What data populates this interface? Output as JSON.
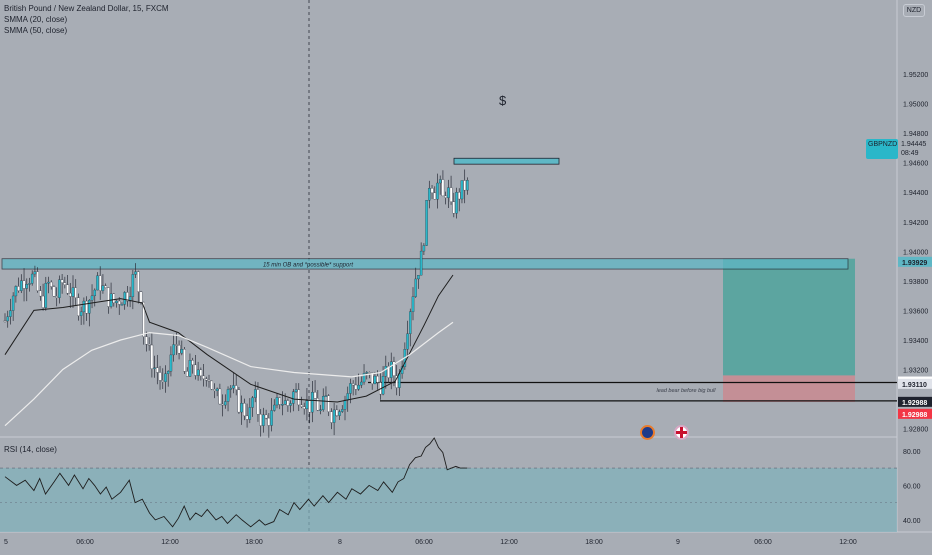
{
  "header": {
    "symbol_title": "British Pound / New Zealand Dollar, 15, FXCM",
    "indicator_1": "SMMA (20, close)",
    "indicator_2": "SMMA (50, close)",
    "currency": "NZD"
  },
  "rsi_header": "RSI (14, close)",
  "annotations": {
    "dollar_sign": "$",
    "support_label": "15 min OB and *possible* support",
    "lead_label": "lead bear before big bull"
  },
  "price_tag": {
    "symbol": "GBPNZD",
    "price": "1.94445",
    "countdown": "08:49"
  },
  "colors": {
    "background": "#a8adb5",
    "bull": "#2ab7c9",
    "bear": "#ffffff",
    "wick": "#2a2e39",
    "zone": "#5fb7c5",
    "target": "#4fa39c",
    "stop": "#c98a90",
    "sma_fast": "#1e1e1e",
    "sma_slow": "#ececec",
    "rsi_line": "#1e1e1e",
    "rsi_band": "#7fb1bb"
  },
  "chart_data": {
    "type": "candlestick",
    "symbol": "GBPNZD",
    "timeframe": "15",
    "y_range": [
      1.9275,
      1.9562
    ],
    "y_ticks": [
      "1.95200",
      "1.95000",
      "1.94800",
      "1.94600",
      "1.94400",
      "1.94200",
      "1.94000",
      "1.93800",
      "1.93600",
      "1.93400",
      "1.93200",
      "1.93000",
      "1.92800"
    ],
    "x_ticks": [
      "5",
      "06:00",
      "12:00",
      "18:00",
      "8",
      "06:00",
      "12:00",
      "18:00",
      "9",
      "06:00",
      "12:00"
    ],
    "n_bars": 171,
    "price_series": [
      [
        0,
        1.9353
      ],
      [
        5,
        1.937
      ],
      [
        10,
        1.9378
      ],
      [
        15,
        1.9383
      ],
      [
        20,
        1.9382
      ],
      [
        25,
        1.9364
      ],
      [
        30,
        1.9378
      ],
      [
        35,
        1.9368
      ],
      [
        40,
        1.938
      ],
      [
        45,
        1.9373
      ],
      [
        50,
        1.9363
      ],
      [
        55,
        1.9363
      ],
      [
        60,
        1.937
      ],
      [
        65,
        1.938
      ],
      [
        70,
        1.937
      ],
      [
        75,
        1.9365
      ],
      [
        85,
        1.9372
      ],
      [
        90,
        1.9385
      ],
      [
        92,
        1.9375
      ],
      [
        95,
        1.937
      ],
      [
        96,
        1.9345
      ],
      [
        100,
        1.933
      ],
      [
        104,
        1.932
      ],
      [
        106,
        1.9318
      ],
      [
        110,
        1.9305
      ],
      [
        115,
        1.933
      ],
      [
        120,
        1.934
      ],
      [
        125,
        1.9312
      ],
      [
        130,
        1.9325
      ],
      [
        135,
        1.931
      ],
      [
        140,
        1.932
      ],
      [
        145,
        1.9302
      ],
      [
        150,
        1.93
      ],
      [
        155,
        1.931
      ],
      [
        160,
        1.93
      ],
      [
        165,
        1.9292
      ],
      [
        170,
        1.929
      ],
      [
        172,
        1.9305
      ],
      [
        176,
        1.9288
      ],
      [
        180,
        1.9285
      ],
      [
        186,
        1.929
      ],
      [
        190,
        1.93
      ],
      [
        196,
        1.9296
      ],
      [
        200,
        1.9305
      ],
      [
        205,
        1.9302
      ],
      [
        210,
        1.9295
      ],
      [
        215,
        1.93
      ],
      [
        218,
        1.929
      ],
      [
        222,
        1.93
      ],
      [
        226,
        1.929
      ],
      [
        230,
        1.9295
      ],
      [
        235,
        1.93
      ],
      [
        240,
        1.931
      ],
      [
        245,
        1.931
      ],
      [
        250,
        1.9315
      ],
      [
        255,
        1.9313
      ],
      [
        260,
        1.931
      ],
      [
        265,
        1.9318
      ],
      [
        268,
        1.932
      ],
      [
        272,
        1.931
      ],
      [
        276,
        1.9335
      ],
      [
        280,
        1.936
      ],
      [
        284,
        1.9382
      ],
      [
        288,
        1.9395
      ],
      [
        291,
        1.942
      ],
      [
        294,
        1.945
      ],
      [
        297,
        1.944
      ],
      [
        300,
        1.9447
      ],
      [
        303,
        1.9435
      ],
      [
        306,
        1.9445
      ],
      [
        309,
        1.9425
      ],
      [
        312,
        1.9435
      ],
      [
        315,
        1.944
      ],
      [
        318,
        1.9444
      ],
      [
        320,
        1.94445
      ]
    ],
    "candle_noise_seed": 7,
    "smma_20": [
      [
        0,
        1.933
      ],
      [
        20,
        1.936
      ],
      [
        40,
        1.9362
      ],
      [
        60,
        1.9365
      ],
      [
        80,
        1.9368
      ],
      [
        95,
        1.9365
      ],
      [
        100,
        1.9352
      ],
      [
        120,
        1.9345
      ],
      [
        140,
        1.933
      ],
      [
        170,
        1.931
      ],
      [
        200,
        1.93
      ],
      [
        230,
        1.9298
      ],
      [
        250,
        1.9302
      ],
      [
        270,
        1.9312
      ],
      [
        290,
        1.935
      ],
      [
        300,
        1.937
      ],
      [
        310,
        1.9384
      ]
    ],
    "smma_50": [
      [
        0,
        1.9282
      ],
      [
        20,
        1.93
      ],
      [
        40,
        1.932
      ],
      [
        60,
        1.9333
      ],
      [
        80,
        1.934
      ],
      [
        100,
        1.9345
      ],
      [
        120,
        1.9343
      ],
      [
        140,
        1.9335
      ],
      [
        170,
        1.9322
      ],
      [
        200,
        1.9318
      ],
      [
        240,
        1.9315
      ],
      [
        260,
        1.9318
      ],
      [
        280,
        1.933
      ],
      [
        300,
        1.9345
      ],
      [
        310,
        1.9352
      ]
    ],
    "zones": {
      "dollar_box": [
        1.9459,
        1.9463
      ],
      "support_ob": [
        1.9388,
        1.9395
      ],
      "target_tp": [
        1.9316,
        1.9395
      ],
      "stop_sl": [
        1.9298,
        1.9316
      ]
    },
    "levels": [
      {
        "label": "1.93929",
        "value": 1.93929,
        "role": "zone-top"
      },
      {
        "label": "1.93112",
        "value": 1.93112,
        "role": "black-line"
      },
      {
        "label": "1.93110",
        "value": 1.9311,
        "role": "light-line"
      },
      {
        "label": "1.92988",
        "value": 1.92988,
        "role": "black-line"
      },
      {
        "label": "1.92988",
        "value": 1.92988,
        "role": "red-line"
      }
    ],
    "rsi": {
      "y_range": [
        33,
        88
      ],
      "y_ticks": [
        "80.00",
        "60.00",
        "40.00"
      ],
      "band": [
        30,
        70
      ],
      "series": [
        [
          0,
          65
        ],
        [
          8,
          60
        ],
        [
          14,
          63
        ],
        [
          20,
          57
        ],
        [
          24,
          64
        ],
        [
          28,
          55
        ],
        [
          34,
          62
        ],
        [
          38,
          67
        ],
        [
          44,
          60
        ],
        [
          48,
          66
        ],
        [
          54,
          58
        ],
        [
          58,
          64
        ],
        [
          62,
          60
        ],
        [
          66,
          55
        ],
        [
          70,
          59
        ],
        [
          74,
          52
        ],
        [
          80,
          56
        ],
        [
          86,
          63
        ],
        [
          90,
          50
        ],
        [
          95,
          52
        ],
        [
          100,
          44
        ],
        [
          104,
          40
        ],
        [
          110,
          42
        ],
        [
          116,
          36
        ],
        [
          120,
          41
        ],
        [
          124,
          48
        ],
        [
          128,
          40
        ],
        [
          132,
          44
        ],
        [
          136,
          42
        ],
        [
          140,
          46
        ],
        [
          146,
          40
        ],
        [
          150,
          42
        ],
        [
          154,
          38
        ],
        [
          160,
          43
        ],
        [
          164,
          40
        ],
        [
          170,
          36
        ],
        [
          176,
          40
        ],
        [
          180,
          37
        ],
        [
          186,
          39
        ],
        [
          190,
          46
        ],
        [
          196,
          43
        ],
        [
          200,
          50
        ],
        [
          204,
          46
        ],
        [
          210,
          52
        ],
        [
          214,
          48
        ],
        [
          220,
          54
        ],
        [
          224,
          50
        ],
        [
          230,
          56
        ],
        [
          236,
          52
        ],
        [
          240,
          58
        ],
        [
          246,
          55
        ],
        [
          252,
          60
        ],
        [
          258,
          57
        ],
        [
          262,
          62
        ],
        [
          268,
          56
        ],
        [
          272,
          62
        ],
        [
          276,
          64
        ],
        [
          280,
          72
        ],
        [
          284,
          76
        ],
        [
          288,
          77
        ],
        [
          291,
          82
        ],
        [
          294,
          84
        ],
        [
          297,
          90
        ],
        [
          300,
          82
        ],
        [
          303,
          79
        ],
        [
          306,
          69
        ],
        [
          309,
          70
        ],
        [
          312,
          71
        ],
        [
          315,
          70
        ],
        [
          320,
          70
        ]
      ]
    }
  }
}
